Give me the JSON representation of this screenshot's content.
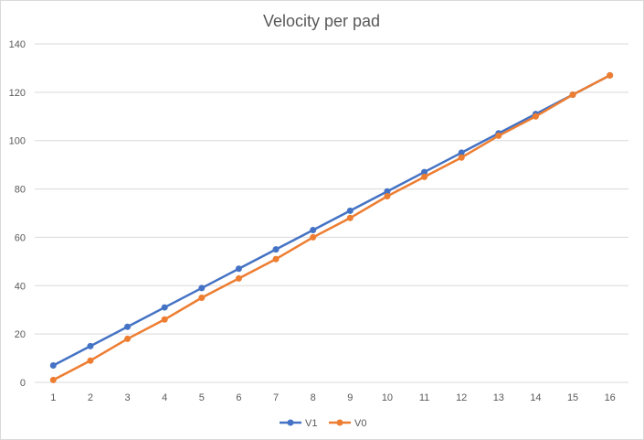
{
  "chart_data": {
    "type": "line",
    "title": "Velocity per pad",
    "xlabel": "",
    "ylabel": "",
    "categories": [
      "1",
      "2",
      "3",
      "4",
      "5",
      "6",
      "7",
      "8",
      "9",
      "10",
      "11",
      "12",
      "13",
      "14",
      "15",
      "16"
    ],
    "ylim": [
      0,
      140
    ],
    "yticks": [
      0,
      20,
      40,
      60,
      80,
      100,
      120,
      140
    ],
    "grid": true,
    "legend_position": "bottom",
    "series": [
      {
        "name": "V1",
        "color": "#4472c4",
        "values": [
          7,
          15,
          23,
          31,
          39,
          47,
          55,
          63,
          71,
          79,
          87,
          95,
          103,
          111,
          119,
          127
        ]
      },
      {
        "name": "V0",
        "color": "#ed7d31",
        "values": [
          1,
          9,
          18,
          26,
          35,
          43,
          51,
          60,
          68,
          77,
          85,
          93,
          102,
          110,
          119,
          127
        ]
      }
    ]
  }
}
